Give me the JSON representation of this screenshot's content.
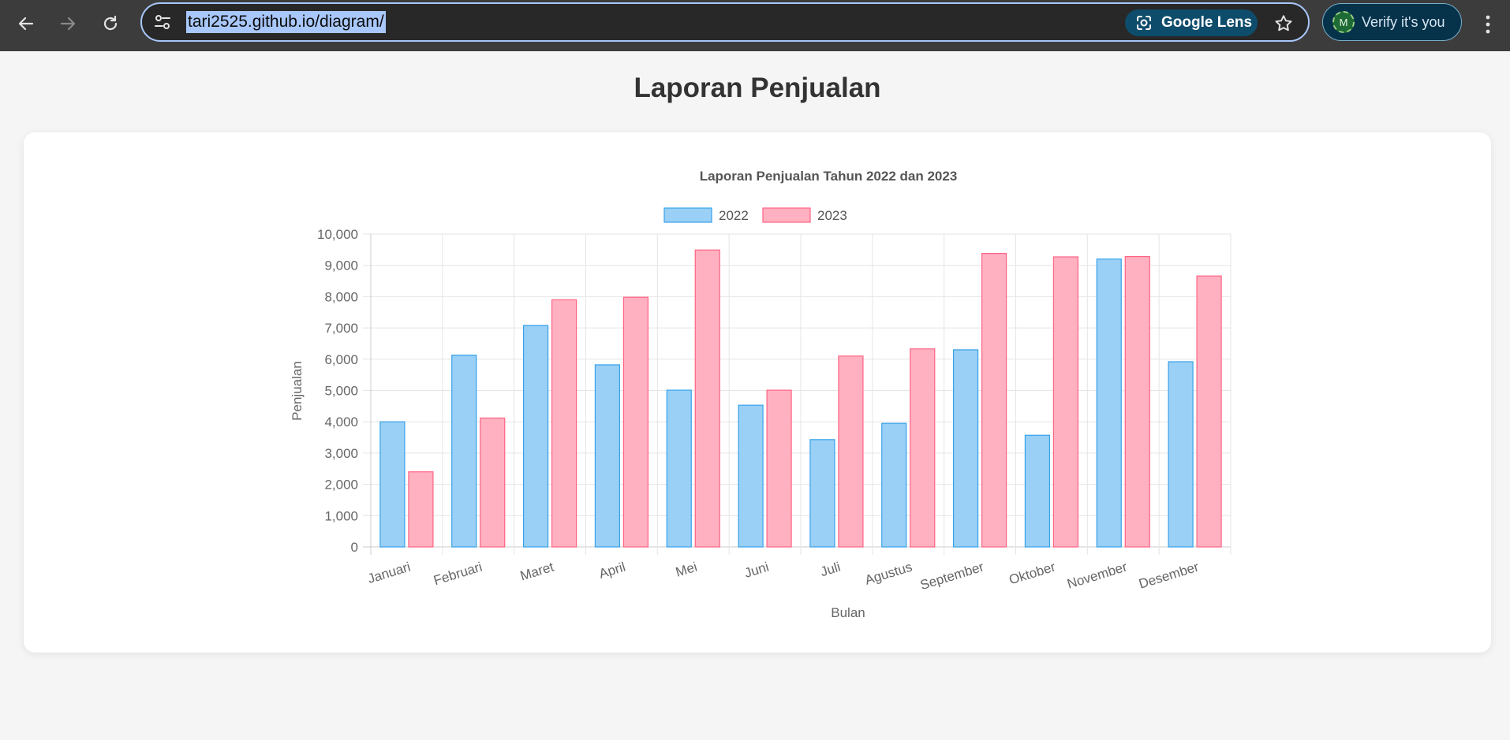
{
  "browser": {
    "url": "tari2525.github.io/diagram/",
    "lens_label": "Google Lens",
    "verify_label": "Verify it's you",
    "avatar_initial": "M",
    "icons": [
      "back-arrow-icon",
      "forward-arrow-icon",
      "reload-icon",
      "site-settings-icon",
      "google-lens-icon",
      "bookmark-star-icon",
      "more-menu-icon"
    ]
  },
  "page": {
    "heading": "Laporan Penjualan"
  },
  "colors": {
    "series_2022_fill": "#9ad0f5",
    "series_2022_border": "#36a2eb",
    "series_2023_fill": "#ffb1c1",
    "series_2023_border": "#ff6384"
  },
  "chart_data": {
    "type": "bar",
    "title": "Laporan Penjualan Tahun 2022 dan 2023",
    "xlabel": "Bulan",
    "ylabel": "Penjualan",
    "ylim": [
      0,
      10000
    ],
    "yticks": [
      "0",
      "1,000",
      "2,000",
      "3,000",
      "4,000",
      "5,000",
      "6,000",
      "7,000",
      "8,000",
      "9,000",
      "10,000"
    ],
    "grid": true,
    "legend": "top",
    "categories": [
      "Januari",
      "Februari",
      "Maret",
      "April",
      "Mei",
      "Juni",
      "Juli",
      "Agustus",
      "September",
      "Oktober",
      "November",
      "Desember"
    ],
    "series": [
      {
        "name": "2022",
        "values": [
          4000,
          6130,
          7080,
          5820,
          5010,
          4530,
          3430,
          3950,
          6300,
          3570,
          9200,
          5920
        ]
      },
      {
        "name": "2023",
        "values": [
          2400,
          4120,
          7900,
          7980,
          9490,
          5010,
          6100,
          6330,
          9380,
          9270,
          9280,
          8660
        ]
      }
    ]
  }
}
